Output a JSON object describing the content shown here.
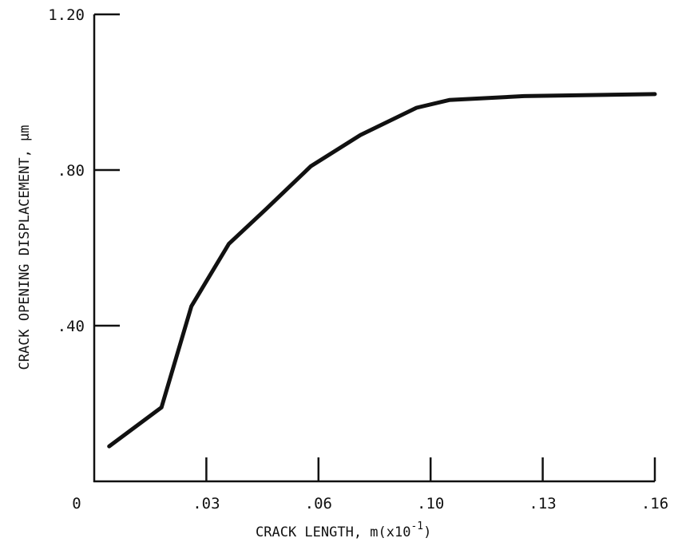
{
  "chart_data": {
    "type": "line",
    "title": "",
    "xlabel": "CRACK LENGTH, m(x10",
    "xlabel_exponent": "-1",
    "xlabel_close": ")",
    "ylabel": "CRACK OPENING DISPLACEMENT, μm",
    "xlim": [
      0,
      0.16
    ],
    "ylim": [
      0,
      1.2
    ],
    "x_tick_labels": [
      "0",
      ".03",
      ".06",
      ".10",
      ".13",
      ".16"
    ],
    "y_tick_labels": [
      ".40",
      ".80",
      "1.20"
    ],
    "grid": false,
    "series": [
      {
        "x": [
          0.004,
          0.018,
          0.026,
          0.036,
          0.046,
          0.058,
          0.075,
          0.095,
          0.105,
          0.125,
          0.16
        ],
        "y": [
          0.09,
          0.19,
          0.45,
          0.61,
          0.7,
          0.81,
          0.89,
          0.96,
          0.98,
          0.99,
          0.995
        ]
      }
    ]
  }
}
